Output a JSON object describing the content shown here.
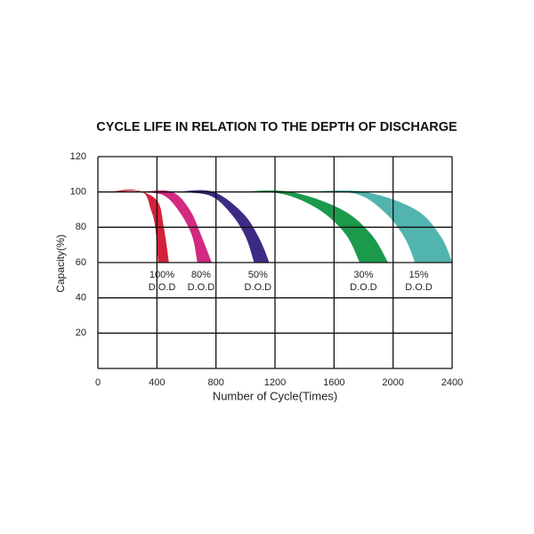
{
  "chart_data": {
    "type": "band",
    "title": "CYCLE LIFE IN RELATION TO THE DEPTH OF DISCHARGE",
    "x_label": "Number of Cycle(Times)",
    "y_label": "Capacity(%)",
    "xlim": [
      0,
      2400
    ],
    "xticks": [
      0,
      400,
      800,
      1200,
      1600,
      2000,
      2400
    ],
    "ylim": [
      0,
      120
    ],
    "yticks": [
      20,
      40,
      60,
      80,
      100,
      120
    ],
    "grid": true,
    "series": [
      {
        "name": "100%",
        "label": "D.O.D",
        "color": "#d3213a",
        "outer": {
          "x": [
            90,
            250,
            400,
            445,
            480
          ],
          "y": [
            100,
            101,
            95,
            80,
            60
          ]
        },
        "inner": {
          "x": [
            90,
            300,
            360,
            390,
            410
          ],
          "y": [
            100,
            100,
            90,
            80,
            60
          ]
        }
      },
      {
        "name": "80%",
        "label": "D.O.D",
        "color": "#d12a80",
        "outer": {
          "x": [
            300,
            500,
            620,
            700,
            770
          ],
          "y": [
            100,
            100,
            90,
            75,
            60
          ]
        },
        "inner": {
          "x": [
            300,
            450,
            560,
            640,
            675
          ],
          "y": [
            100,
            98,
            88,
            75,
            60
          ]
        }
      },
      {
        "name": "50%",
        "label": "D.O.D",
        "color": "#3d2a84",
        "outer": {
          "x": [
            540,
            780,
            980,
            1090,
            1160
          ],
          "y": [
            100,
            100,
            88,
            74,
            60
          ]
        },
        "inner": {
          "x": [
            540,
            760,
            900,
            1000,
            1060
          ],
          "y": [
            100,
            98,
            88,
            75,
            60
          ]
        }
      },
      {
        "name": "30%",
        "label": "D.O.D",
        "color": "#1c9a4c",
        "outer": {
          "x": [
            965,
            1300,
            1650,
            1850,
            1965
          ],
          "y": [
            100,
            100,
            90,
            76,
            60
          ]
        },
        "inner": {
          "x": [
            965,
            1250,
            1500,
            1680,
            1775
          ],
          "y": [
            100,
            99,
            90,
            76,
            60
          ]
        }
      },
      {
        "name": "15%",
        "label": "D.O.D",
        "color": "#52b4ae",
        "outer": {
          "x": [
            1420,
            1800,
            2150,
            2320,
            2400
          ],
          "y": [
            100,
            100,
            90,
            75,
            60
          ]
        },
        "inner": {
          "x": [
            1420,
            1750,
            1950,
            2080,
            2150
          ],
          "y": [
            100,
            99,
            88,
            74,
            60
          ]
        }
      }
    ]
  }
}
